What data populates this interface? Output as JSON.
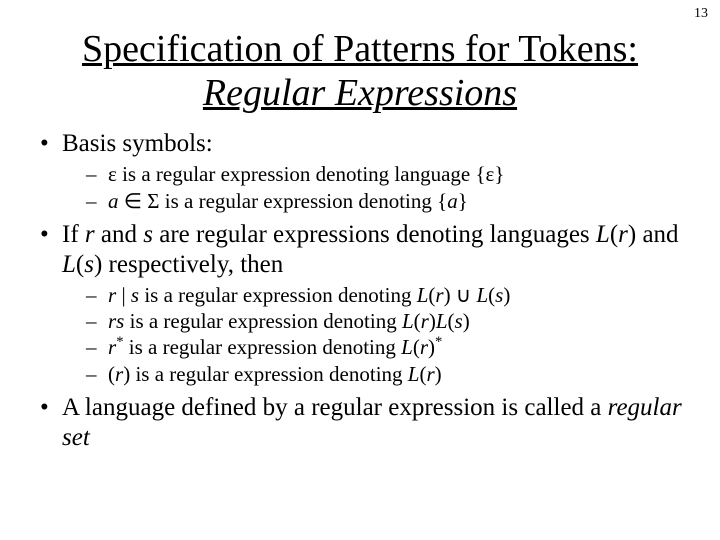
{
  "page_number": "13",
  "title": {
    "part1": "Specification of Patterns for Tokens:",
    "part2": "Regular Expressions"
  },
  "bullets": {
    "b1": "Basis symbols:",
    "b1a": "ε is a regular expression denoting language {ε}",
    "b1b_pre": "a",
    "b1b_mid": " ∈ Σ is a regular expression denoting {",
    "b1b_post": "a",
    "b1b_end": "}",
    "b2_pre": "If ",
    "b2_r": "r",
    "b2_mid1": " and ",
    "b2_s": "s",
    "b2_mid2": " are regular expressions denoting languages ",
    "b2_Lr": "L",
    "b2_Lr_r": "r",
    "b2_mid3": ") and ",
    "b2_Ls": "L",
    "b2_Ls_s": "s",
    "b2_mid4": ") respectively, then",
    "b2a_r": "r",
    "b2a_bar": " | ",
    "b2a_s": "s",
    "b2a_mid": " is a regular expression denoting ",
    "b2a_Lr": "L",
    "b2a_Lr_r": "r",
    "b2a_un": ") ∪ ",
    "b2a_Ls": "L",
    "b2a_Ls_s": "s",
    "b2a_end": ")",
    "b2b_rs": "rs",
    "b2b_mid": " is a regular expression denoting ",
    "b2b_Lr": "L",
    "b2b_Lr_r": "r",
    "b2b_Ls": "L",
    "b2b_Ls_s": "s",
    "b2b_end": ")",
    "b2c_r": "r",
    "b2c_star": "*",
    "b2c_mid": " is a regular expression denoting ",
    "b2c_Lr": "L",
    "b2c_Lr_r": "r",
    "b2c_end_star": "*",
    "b2d_open": "(",
    "b2d_r": "r",
    "b2d_close": ")",
    "b2d_mid": " is a regular expression denoting ",
    "b2d_Lr": "L",
    "b2d_Lr_r": "r",
    "b2d_end": ")",
    "b3_pre": "A language defined by a regular expression is called a ",
    "b3_em": "regular set"
  },
  "style": {
    "background": "#ffffff",
    "text_color": "#000000",
    "title_fontsize": 38,
    "body_fontsize": 25,
    "sub_fontsize": 21,
    "font_family": "Times New Roman"
  }
}
